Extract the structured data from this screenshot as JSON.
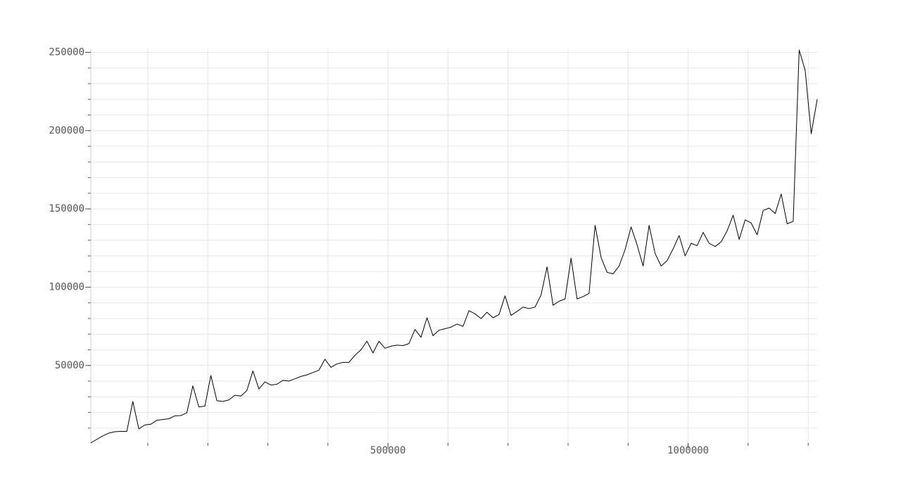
{
  "chart_data": {
    "type": "line",
    "x": [
      5000,
      15000,
      25000,
      35000,
      45000,
      55000,
      65000,
      75000,
      85000,
      95000,
      105000,
      115000,
      125000,
      135000,
      145000,
      155000,
      165000,
      175000,
      185000,
      195000,
      205000,
      215000,
      225000,
      235000,
      245000,
      255000,
      265000,
      275000,
      285000,
      295000,
      305000,
      315000,
      325000,
      335000,
      345000,
      355000,
      365000,
      375000,
      385000,
      395000,
      405000,
      415000,
      425000,
      435000,
      445000,
      455000,
      465000,
      475000,
      485000,
      495000,
      505000,
      515000,
      525000,
      535000,
      545000,
      555000,
      565000,
      575000,
      585000,
      595000,
      605000,
      615000,
      625000,
      635000,
      645000,
      655000,
      665000,
      675000,
      685000,
      695000,
      705000,
      715000,
      725000,
      735000,
      745000,
      755000,
      765000,
      775000,
      785000,
      795000,
      805000,
      815000,
      825000,
      835000,
      845000,
      855000,
      865000,
      875000,
      885000,
      895000,
      905000,
      915000,
      925000,
      935000,
      945000,
      955000,
      965000,
      975000,
      985000,
      995000,
      1005000,
      1015000,
      1025000,
      1035000,
      1045000,
      1055000,
      1065000,
      1075000,
      1085000,
      1095000,
      1105000,
      1115000,
      1125000,
      1135000,
      1145000,
      1155000,
      1165000,
      1175000,
      1185000,
      1195000,
      1205000,
      1215000
    ],
    "series": [
      {
        "color": "#000000",
        "values": [
          500,
          2800,
          5000,
          6800,
          7700,
          7900,
          7900,
          27000,
          9500,
          12000,
          12500,
          15000,
          15500,
          16000,
          17800,
          18000,
          19800,
          37000,
          23500,
          24000,
          43600,
          27500,
          27000,
          28000,
          31000,
          30500,
          34000,
          46500,
          35000,
          39500,
          37500,
          38000,
          40500,
          40000,
          41500,
          43000,
          44000,
          45500,
          47000,
          54000,
          48800,
          51000,
          52000,
          52000,
          56500,
          60000,
          65500,
          58000,
          65500,
          61000,
          62300,
          63000,
          62700,
          64000,
          73000,
          68000,
          80500,
          69000,
          72500,
          73500,
          74500,
          76500,
          75000,
          85000,
          83000,
          80000,
          84000,
          80500,
          82500,
          94500,
          82000,
          84500,
          87300,
          86300,
          87300,
          95000,
          113000,
          88500,
          91000,
          92500,
          118500,
          92500,
          94000,
          96000,
          139500,
          119000,
          109500,
          108500,
          113500,
          124000,
          138500,
          127000,
          113500,
          139500,
          121500,
          113500,
          117000,
          124500,
          133000,
          120000,
          128000,
          126500,
          135000,
          128000,
          126000,
          129000,
          136000,
          146000,
          130500,
          143000,
          141000,
          133500,
          149000,
          150500,
          147000,
          159500,
          140500,
          142000,
          251500,
          238500,
          198000,
          220000
        ]
      }
    ],
    "xlim": [
      5000,
      1215000
    ],
    "ylim": [
      500,
      252000
    ],
    "xticks": [
      500000,
      1000000
    ],
    "yticks": [
      50000,
      100000,
      150000,
      200000,
      250000
    ],
    "xminorticks": [
      100000,
      200000,
      300000,
      400000,
      500000,
      600000,
      700000,
      800000,
      900000,
      1000000,
      1100000,
      1200000
    ],
    "yminorticks": [
      10000,
      20000,
      30000,
      40000,
      50000,
      60000,
      70000,
      80000,
      90000,
      100000,
      110000,
      120000,
      130000,
      140000,
      150000,
      160000,
      170000,
      180000,
      190000,
      200000,
      210000,
      220000,
      230000,
      240000,
      250000
    ],
    "grid": true
  }
}
